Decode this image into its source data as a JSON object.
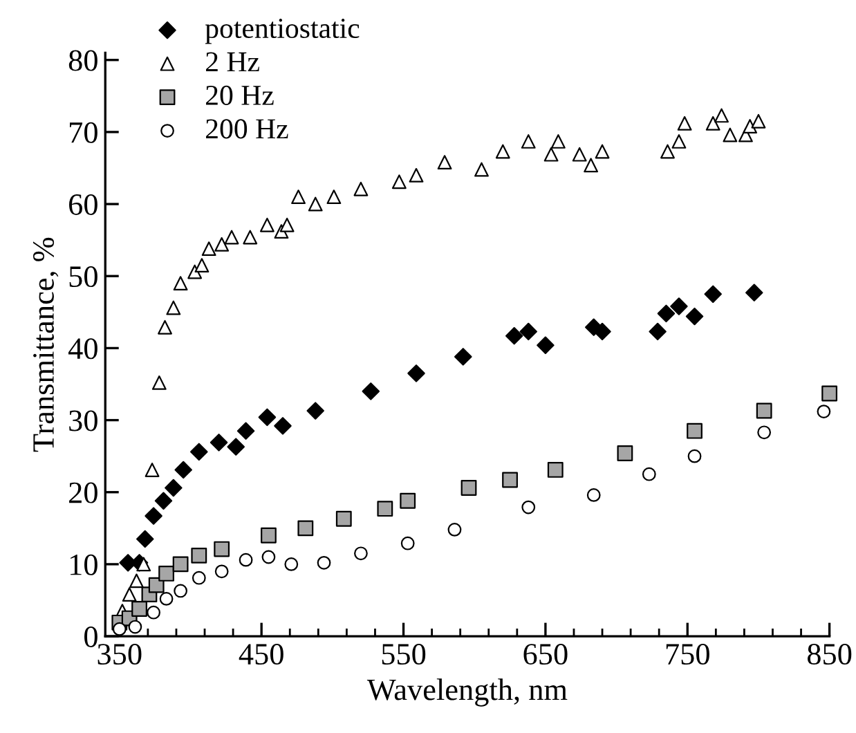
{
  "chart_data": {
    "type": "scatter",
    "xlabel": "Wavelength, nm",
    "ylabel": "Transmittance, %",
    "xlim": [
      340,
      850
    ],
    "ylim": [
      0,
      81
    ],
    "xticks": [
      350,
      {
        "value": 370,
        "label": null
      },
      {
        "value": 390,
        "label": null
      },
      {
        "value": 410,
        "label": null
      },
      {
        "value": 430,
        "label": null
      },
      450,
      {
        "value": 470,
        "label": null
      },
      {
        "value": 490,
        "label": null
      },
      {
        "value": 510,
        "label": null
      },
      {
        "value": 530,
        "label": null
      },
      550,
      {
        "value": 570,
        "label": null
      },
      {
        "value": 590,
        "label": null
      },
      {
        "value": 610,
        "label": null
      },
      {
        "value": 630,
        "label": null
      },
      650,
      {
        "value": 670,
        "label": null
      },
      {
        "value": 690,
        "label": null
      },
      {
        "value": 710,
        "label": null
      },
      {
        "value": 730,
        "label": null
      },
      750,
      {
        "value": 770,
        "label": null
      },
      {
        "value": 790,
        "label": null
      },
      {
        "value": 810,
        "label": null
      },
      {
        "value": 830,
        "label": null
      },
      850
    ],
    "yticks": [
      0,
      10,
      20,
      30,
      40,
      50,
      60,
      70,
      80
    ],
    "grid": false,
    "legend": "top left",
    "series": [
      {
        "name": "potentiostatic",
        "marker": "diamond",
        "color": "#000000",
        "x": [
          356,
          364,
          368,
          374,
          381,
          388,
          395,
          406,
          420,
          432,
          439,
          454,
          465,
          488,
          527,
          559,
          592,
          628,
          638,
          650,
          684,
          690,
          729,
          735,
          744,
          755,
          768,
          797
        ],
        "values": [
          10.2,
          10.2,
          13.5,
          16.7,
          18.8,
          20.6,
          23.1,
          25.6,
          26.9,
          26.3,
          28.5,
          30.4,
          29.2,
          31.3,
          34,
          36.5,
          38.8,
          41.7,
          42.3,
          40.4,
          42.9,
          42.3,
          42.3,
          44.8,
          45.8,
          44.4,
          47.5,
          47.7
        ]
      },
      {
        "name": "2 Hz",
        "marker": "triangle",
        "color": "#ffffff",
        "x": [
          352,
          357,
          362,
          367,
          373,
          378,
          382,
          388,
          393,
          403,
          408,
          413,
          422,
          429,
          442,
          454,
          464,
          468,
          476,
          488,
          501,
          520,
          547,
          559,
          579,
          605,
          620,
          638,
          654,
          659,
          674,
          682,
          690,
          736,
          744,
          748,
          768,
          774,
          780,
          791,
          794,
          800
        ],
        "values": [
          3.5,
          5.8,
          7.7,
          10,
          23.1,
          35.2,
          42.9,
          45.6,
          49,
          50.6,
          51.5,
          53.8,
          54.4,
          55.4,
          55.4,
          57.1,
          56.2,
          57.1,
          61,
          60,
          61,
          62.1,
          63.1,
          64,
          65.8,
          64.8,
          67.3,
          68.7,
          66.9,
          68.7,
          66.9,
          65.4,
          67.3,
          67.3,
          68.7,
          71.2,
          71.2,
          72.3,
          69.6,
          69.6,
          70.8,
          71.5
        ]
      },
      {
        "name": "20 Hz",
        "marker": "square",
        "color": "#a6a6a6",
        "x": [
          350,
          357,
          364,
          371,
          376,
          383,
          393,
          406,
          422,
          455,
          481,
          508,
          537,
          553,
          596,
          625,
          657,
          706,
          755,
          804,
          850
        ],
        "values": [
          1.9,
          2.5,
          3.8,
          5.8,
          7.1,
          8.7,
          10,
          11.2,
          12.1,
          14,
          15,
          16.3,
          17.7,
          18.8,
          20.6,
          21.7,
          23.1,
          25.4,
          28.5,
          31.3,
          33.7
        ]
      },
      {
        "name": "200 Hz",
        "marker": "circle",
        "color": "#ffffff",
        "x": [
          350,
          361,
          374,
          383,
          393,
          406,
          422,
          439,
          455,
          471,
          494,
          520,
          553,
          586,
          638,
          684,
          723,
          755,
          804,
          846
        ],
        "values": [
          1,
          1.3,
          3.3,
          5.2,
          6.3,
          8.1,
          9,
          10.6,
          11,
          10,
          10.2,
          11.5,
          12.9,
          14.8,
          17.9,
          19.6,
          22.5,
          25,
          28.3,
          31.2
        ]
      }
    ]
  }
}
